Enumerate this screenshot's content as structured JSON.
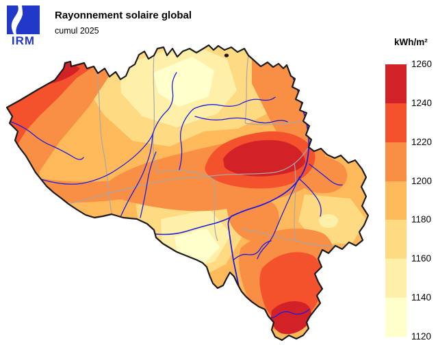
{
  "header": {
    "logo_text": "IRM",
    "logo_color": "#2138c8",
    "title": "Rayonnement solaire global",
    "subtitle": "cumul 2025"
  },
  "legend": {
    "unit_label": "kWh/m²",
    "tick_values": [
      1260,
      1240,
      1220,
      1200,
      1180,
      1160,
      1140,
      1120
    ],
    "bands": [
      {
        "range": "1240–1260",
        "color": "#d22127"
      },
      {
        "range": "1220–1240",
        "color": "#f4512d"
      },
      {
        "range": "1200–1220",
        "color": "#f98f45"
      },
      {
        "range": "1180–1200",
        "color": "#fdb95a"
      },
      {
        "range": "1160–1180",
        "color": "#feda82"
      },
      {
        "range": "1140–1160",
        "color": "#feefa9"
      },
      {
        "range": "1120–1140",
        "color": "#ffffcc"
      }
    ]
  },
  "map": {
    "type": "filled-contour choropleth",
    "region_depicted": "Belgium",
    "country_border_color": "#1a1a1a",
    "province_border_color": "#a8a8a8",
    "river_color": "#1c1ce0",
    "value_extremes": {
      "high_areas": "coast NW, Hesbaye centre-east, southern Gaume tip (1240-1260)",
      "low_areas": "central Flanders and south Hainaut (1120-1140)"
    }
  }
}
